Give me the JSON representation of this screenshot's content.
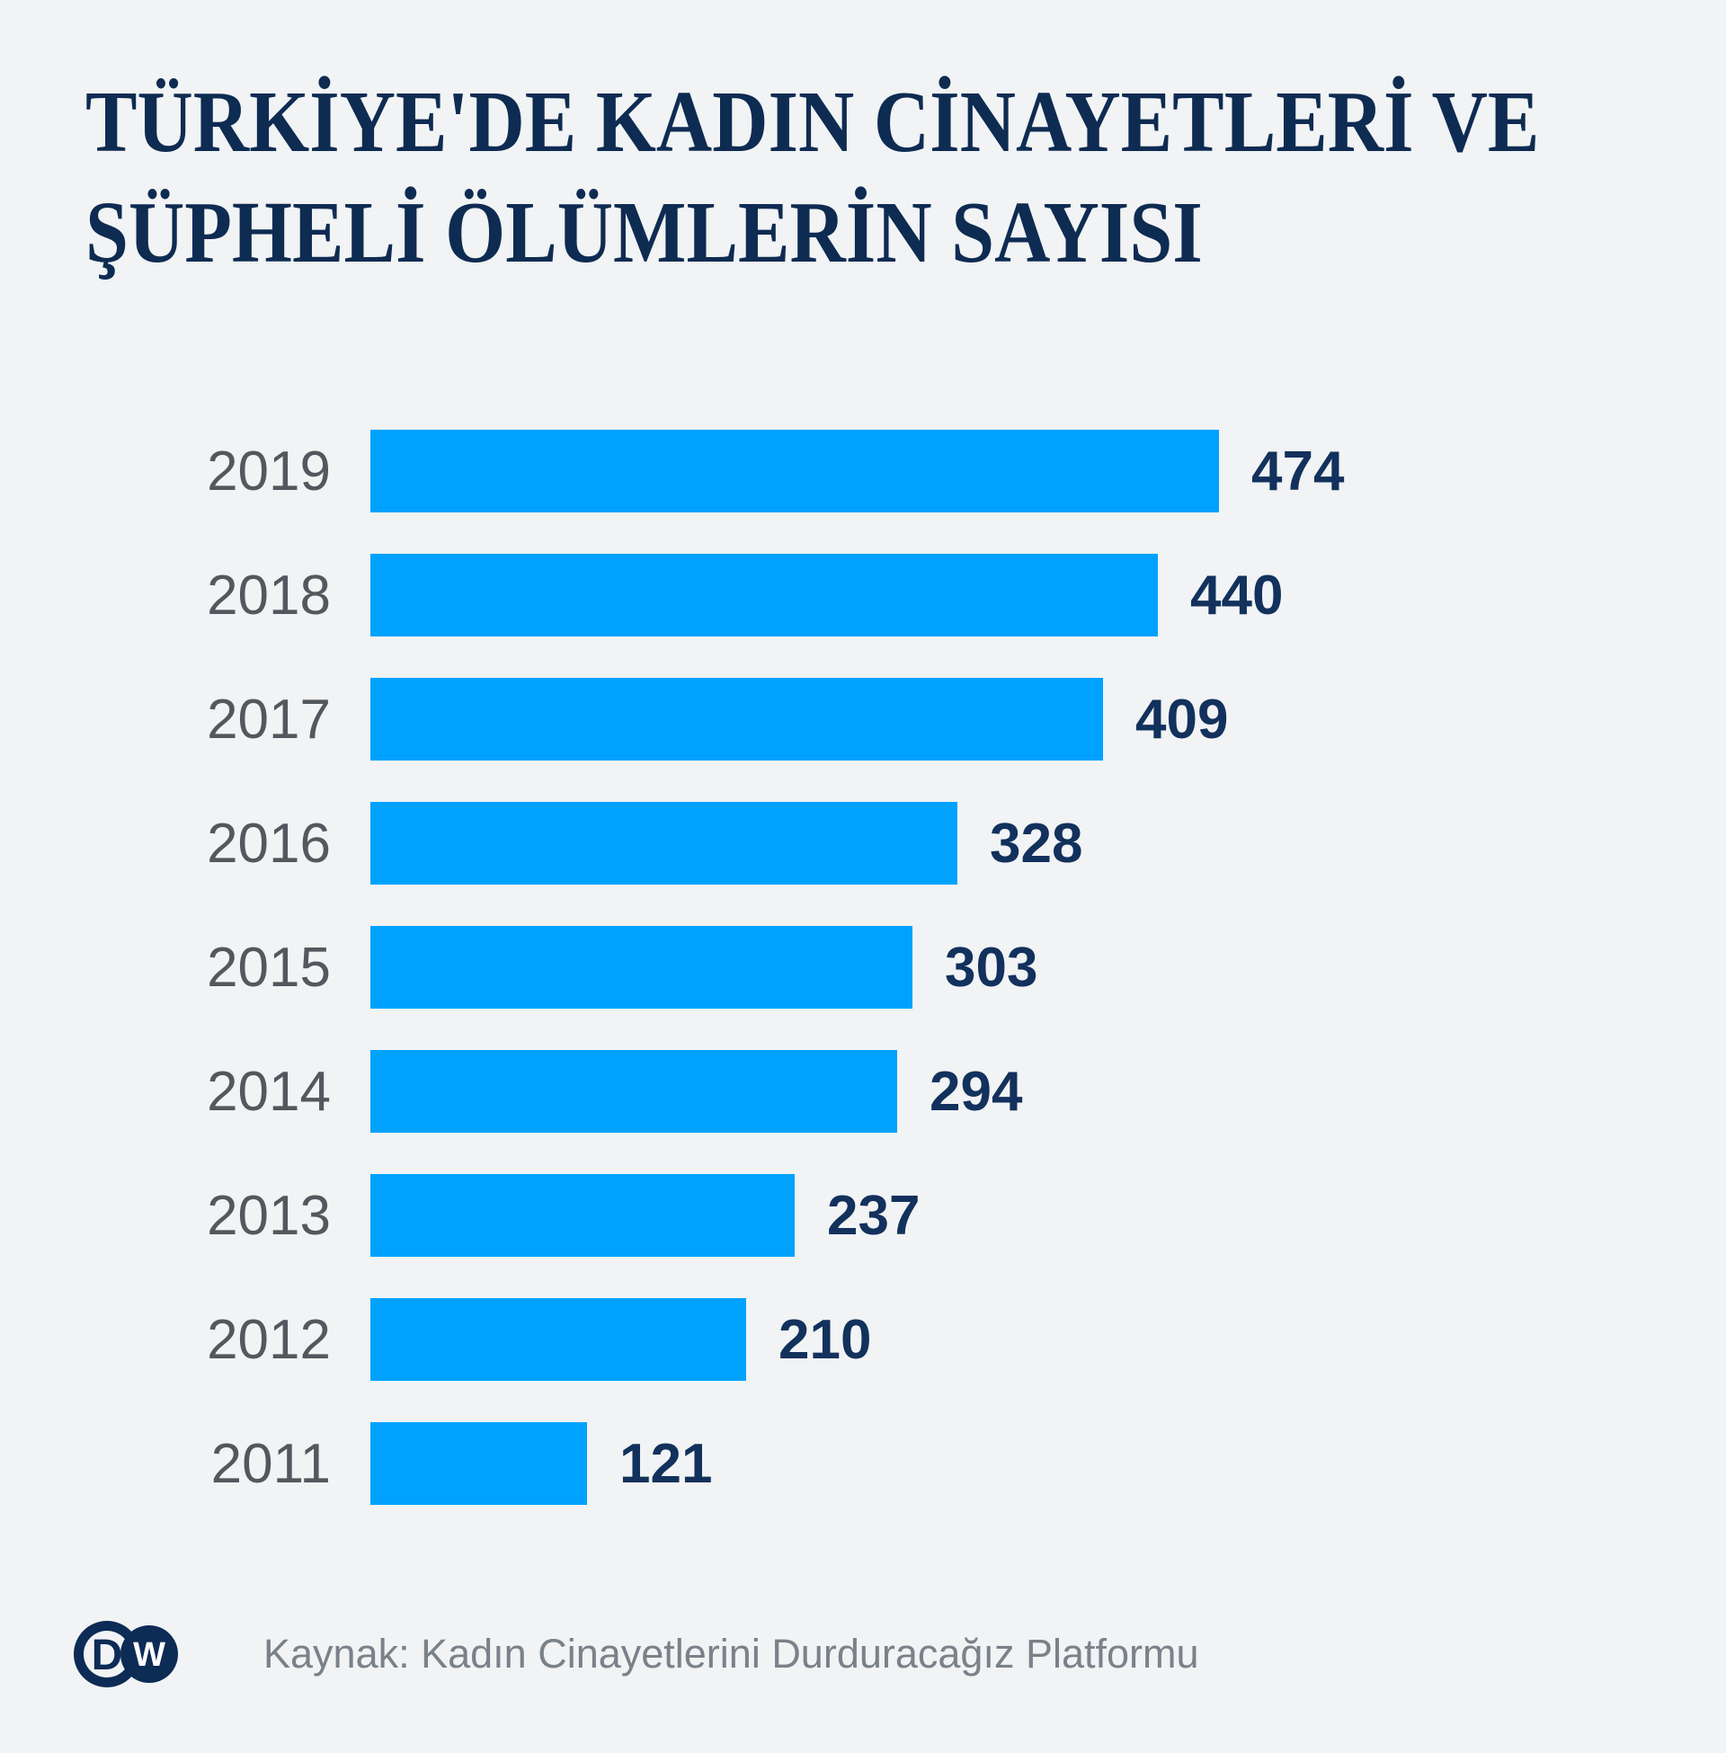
{
  "title": {
    "line1": "TÜRKİYE'DE KADIN CİNAYETLERİ VE",
    "line2": "ŞÜPHELİ ÖLÜMLERİN SAYISI"
  },
  "chart_data": {
    "type": "bar",
    "orientation": "horizontal",
    "title": "TÜRKİYE'DE KADIN CİNAYETLERİ VE ŞÜPHELİ ÖLÜMLERİN SAYISI",
    "categories": [
      "2019",
      "2018",
      "2017",
      "2016",
      "2015",
      "2014",
      "2013",
      "2012",
      "2011"
    ],
    "values": [
      474,
      440,
      409,
      328,
      303,
      294,
      237,
      210,
      121
    ],
    "xlim": [
      0,
      474
    ],
    "grid": false,
    "legend": false,
    "value_labels": "end-of-bar",
    "source": "Kaynak: Kadın Cinayetlerini Durduracağız Platformu"
  },
  "footer": {
    "source": "Kaynak: Kadın Cinayetlerini Durduracağız Platformu",
    "logo_name": "DW",
    "logo_d": "D",
    "logo_w": "W"
  },
  "colors": {
    "background": "#f1f3f4",
    "bar": "#00a2ff",
    "title": "#0e2b52",
    "value": "#12315c",
    "year": "#53585e",
    "source": "#7a8189",
    "logo": "#0c2b55"
  }
}
